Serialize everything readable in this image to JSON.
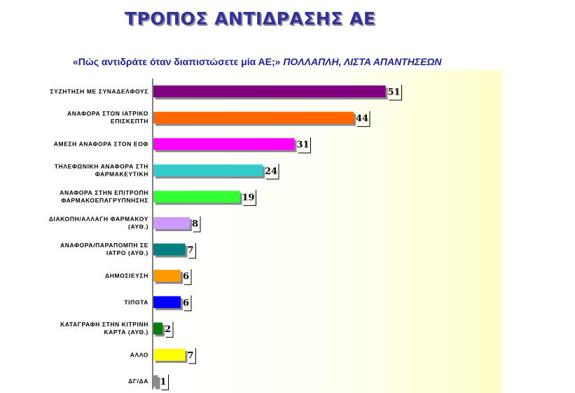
{
  "chart_data": {
    "type": "bar",
    "orientation": "horizontal",
    "title": "ΤΡΟΠΟΣ ΑΝΤΙΔΡΑΣΗΣ ΑΕ",
    "subtitle": "«Πώς αντιδράτε όταν διαπιστώσετε μία ΑΕ;»",
    "subtitle_note": "ΠΟΛΛΑΠΛΗ, ΛΙΣΤΑ ΑΠΑΝΤΗΣΕΩΝ",
    "xlim": [
      0,
      100
    ],
    "grid": false,
    "categories": [
      [
        "ΣΥΖΗΤΗΣΗ ΜΕ ΣΥΝΑΔΕΛΦΟΥΣ"
      ],
      [
        "ΑΝΑΦΟΡΑ ΣΤΟΝ ΙΑΤΡΙΚΟ",
        "ΕΠΙΣΚΕΠΤΗ"
      ],
      [
        "ΑΜΕΣΗ ΑΝΑΦΟΡΑ ΣΤΟΝ ΕΟΦ"
      ],
      [
        "ΤΗΛΕΦΩΝΙΚΗ ΑΝΑΦΟΡΑ ΣΤΗ",
        "ΦΑΡΜΑΚΕΥΤΙΚΗ"
      ],
      [
        "ΑΝΑΦΟΡΑ ΣΤΗΝ ΕΠΙΤΡΟΠΗ",
        "ΦΑΡΜΑΚΟΕΠΑΓΡΥΠΝΗΣΗΣ"
      ],
      [
        "ΔΙΑΚΟΠΗ/ΑΛΛΑΓΗ ΦΑΡΜΑΚΟΥ",
        "(ΑΥΘ.)"
      ],
      [
        "ΑΝΑΦΟΡΑ/ΠΑΡΑΠΟΜΠΗ ΣΕ",
        "ΙΑΤΡΟ (ΑΥΘ.)"
      ],
      [
        "ΔΗΜΟΣΙΕΥΣΗ"
      ],
      [
        "ΤΙΠΟΤΑ"
      ],
      [
        "ΚΑΤΑΓΡΑΦΗ ΣΤΗΝ ΚΙΤΡΙΝΗ",
        "ΚΑΡΤΑ (ΑΥΘ.)"
      ],
      [
        "ΑΛΛΟ"
      ],
      [
        "ΔΓ/ΔΑ"
      ]
    ],
    "values": [
      51,
      44,
      31,
      24,
      19,
      8,
      7,
      6,
      6,
      2,
      7,
      1
    ],
    "colors": [
      "#800080",
      "#ff6600",
      "#ff00ff",
      "#33cccc",
      "#33ff33",
      "#cc99ff",
      "#008080",
      "#ff9900",
      "#0000ff",
      "#008000",
      "#ffff00",
      "#8c8c8c"
    ]
  }
}
